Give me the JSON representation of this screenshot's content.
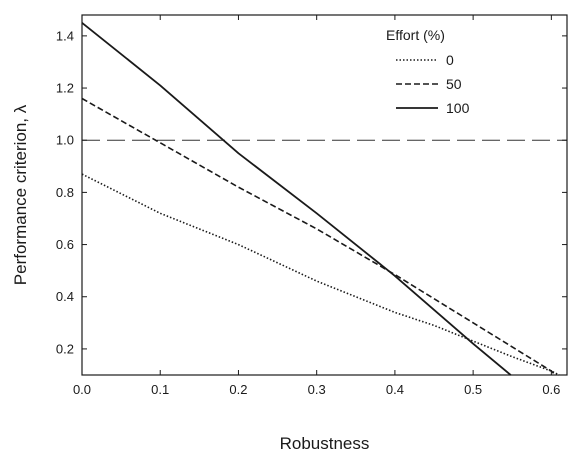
{
  "chart_data": {
    "type": "line",
    "xlabel": "Robustness",
    "ylabel": "Performance criterion, λ",
    "xlim": [
      0.0,
      0.62
    ],
    "ylim": [
      0.1,
      1.48
    ],
    "xticks": [
      "0.0",
      "0.1",
      "0.2",
      "0.3",
      "0.4",
      "0.5",
      "0.6"
    ],
    "yticks": [
      "0.2",
      "0.4",
      "0.6",
      "0.8",
      "1.0",
      "1.2",
      "1.4"
    ],
    "legend": {
      "title": "Effort (%)",
      "position": "top-right"
    },
    "reference_line": {
      "y": 1.0,
      "style": "long-dash"
    },
    "series": [
      {
        "name": "0",
        "style": "dotted",
        "x": [
          0.0,
          0.1,
          0.2,
          0.3,
          0.4,
          0.45,
          0.5,
          0.55,
          0.6,
          0.61
        ],
        "y": [
          0.87,
          0.72,
          0.6,
          0.46,
          0.34,
          0.29,
          0.23,
          0.17,
          0.115,
          0.1
        ]
      },
      {
        "name": "50",
        "style": "dashed",
        "x": [
          0.0,
          0.1,
          0.2,
          0.3,
          0.4,
          0.5,
          0.6,
          0.605
        ],
        "y": [
          1.16,
          0.99,
          0.82,
          0.66,
          0.485,
          0.3,
          0.115,
          0.1
        ]
      },
      {
        "name": "100",
        "style": "solid",
        "x": [
          0.0,
          0.1,
          0.2,
          0.3,
          0.4,
          0.5,
          0.548
        ],
        "y": [
          1.45,
          1.21,
          0.95,
          0.72,
          0.48,
          0.22,
          0.1
        ]
      }
    ]
  }
}
